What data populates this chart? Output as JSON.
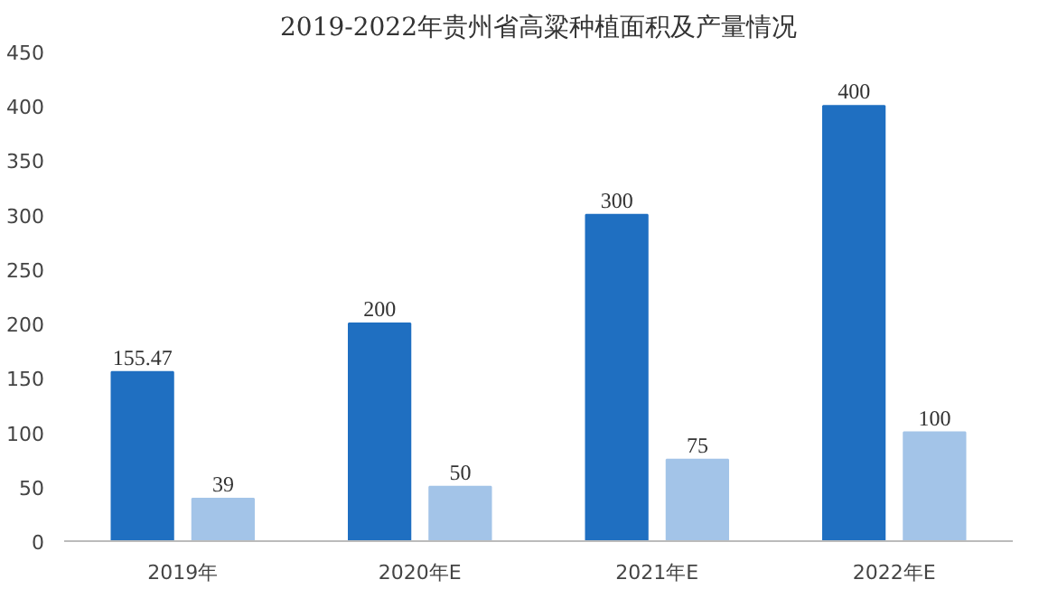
{
  "chart_data": {
    "type": "bar",
    "title": "2019-2022年贵州省高粱种植面积及产量情况",
    "categories": [
      "2019年",
      "2020年E",
      "2021年E",
      "2022年E"
    ],
    "series": [
      {
        "color": "#1f6fc1",
        "values": [
          155.47,
          200,
          300,
          400
        ]
      },
      {
        "color": "#a3c4e8",
        "values": [
          39,
          50,
          75,
          100
        ]
      }
    ],
    "ylim": [
      0,
      450
    ],
    "yticks": [
      0,
      50,
      100,
      150,
      200,
      250,
      300,
      350,
      400,
      450
    ],
    "data_labels": true
  }
}
